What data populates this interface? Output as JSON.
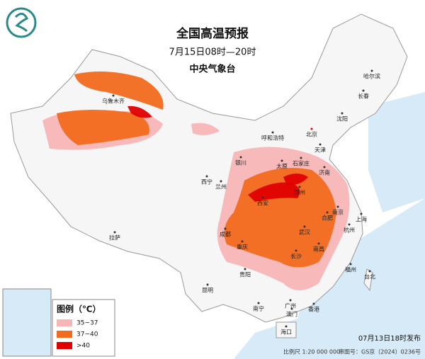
{
  "header": {
    "title": "全国高温预报",
    "time": "7月15日08时—20时",
    "agency": "中央气象台"
  },
  "legend": {
    "title": "图例（℃）",
    "items": [
      {
        "label": "35~37",
        "color": "#f7b5b5"
      },
      {
        "label": "37~40",
        "color": "#f26a1e"
      },
      {
        "label": ">40",
        "color": "#e00000"
      }
    ]
  },
  "cities": [
    "乌鲁木齐",
    "哈尔滨",
    "长春",
    "沈阳",
    "呼和浩特",
    "北京",
    "天津",
    "石家庄",
    "太原",
    "银川",
    "西宁",
    "兰州",
    "济南",
    "郑州",
    "西安",
    "合肥",
    "南京",
    "上海",
    "武汉",
    "杭州",
    "成都",
    "重庆",
    "拉萨",
    "长沙",
    "南昌",
    "福州",
    "台北",
    "贵阳",
    "昆明",
    "南宁",
    "广州",
    "香港",
    "澳门",
    "海口"
  ],
  "footer": {
    "issued": "07月13日18时发布",
    "scale": "比例尺 1:20 000 000",
    "approval": "审图号：GS京（2024）0236号"
  }
}
